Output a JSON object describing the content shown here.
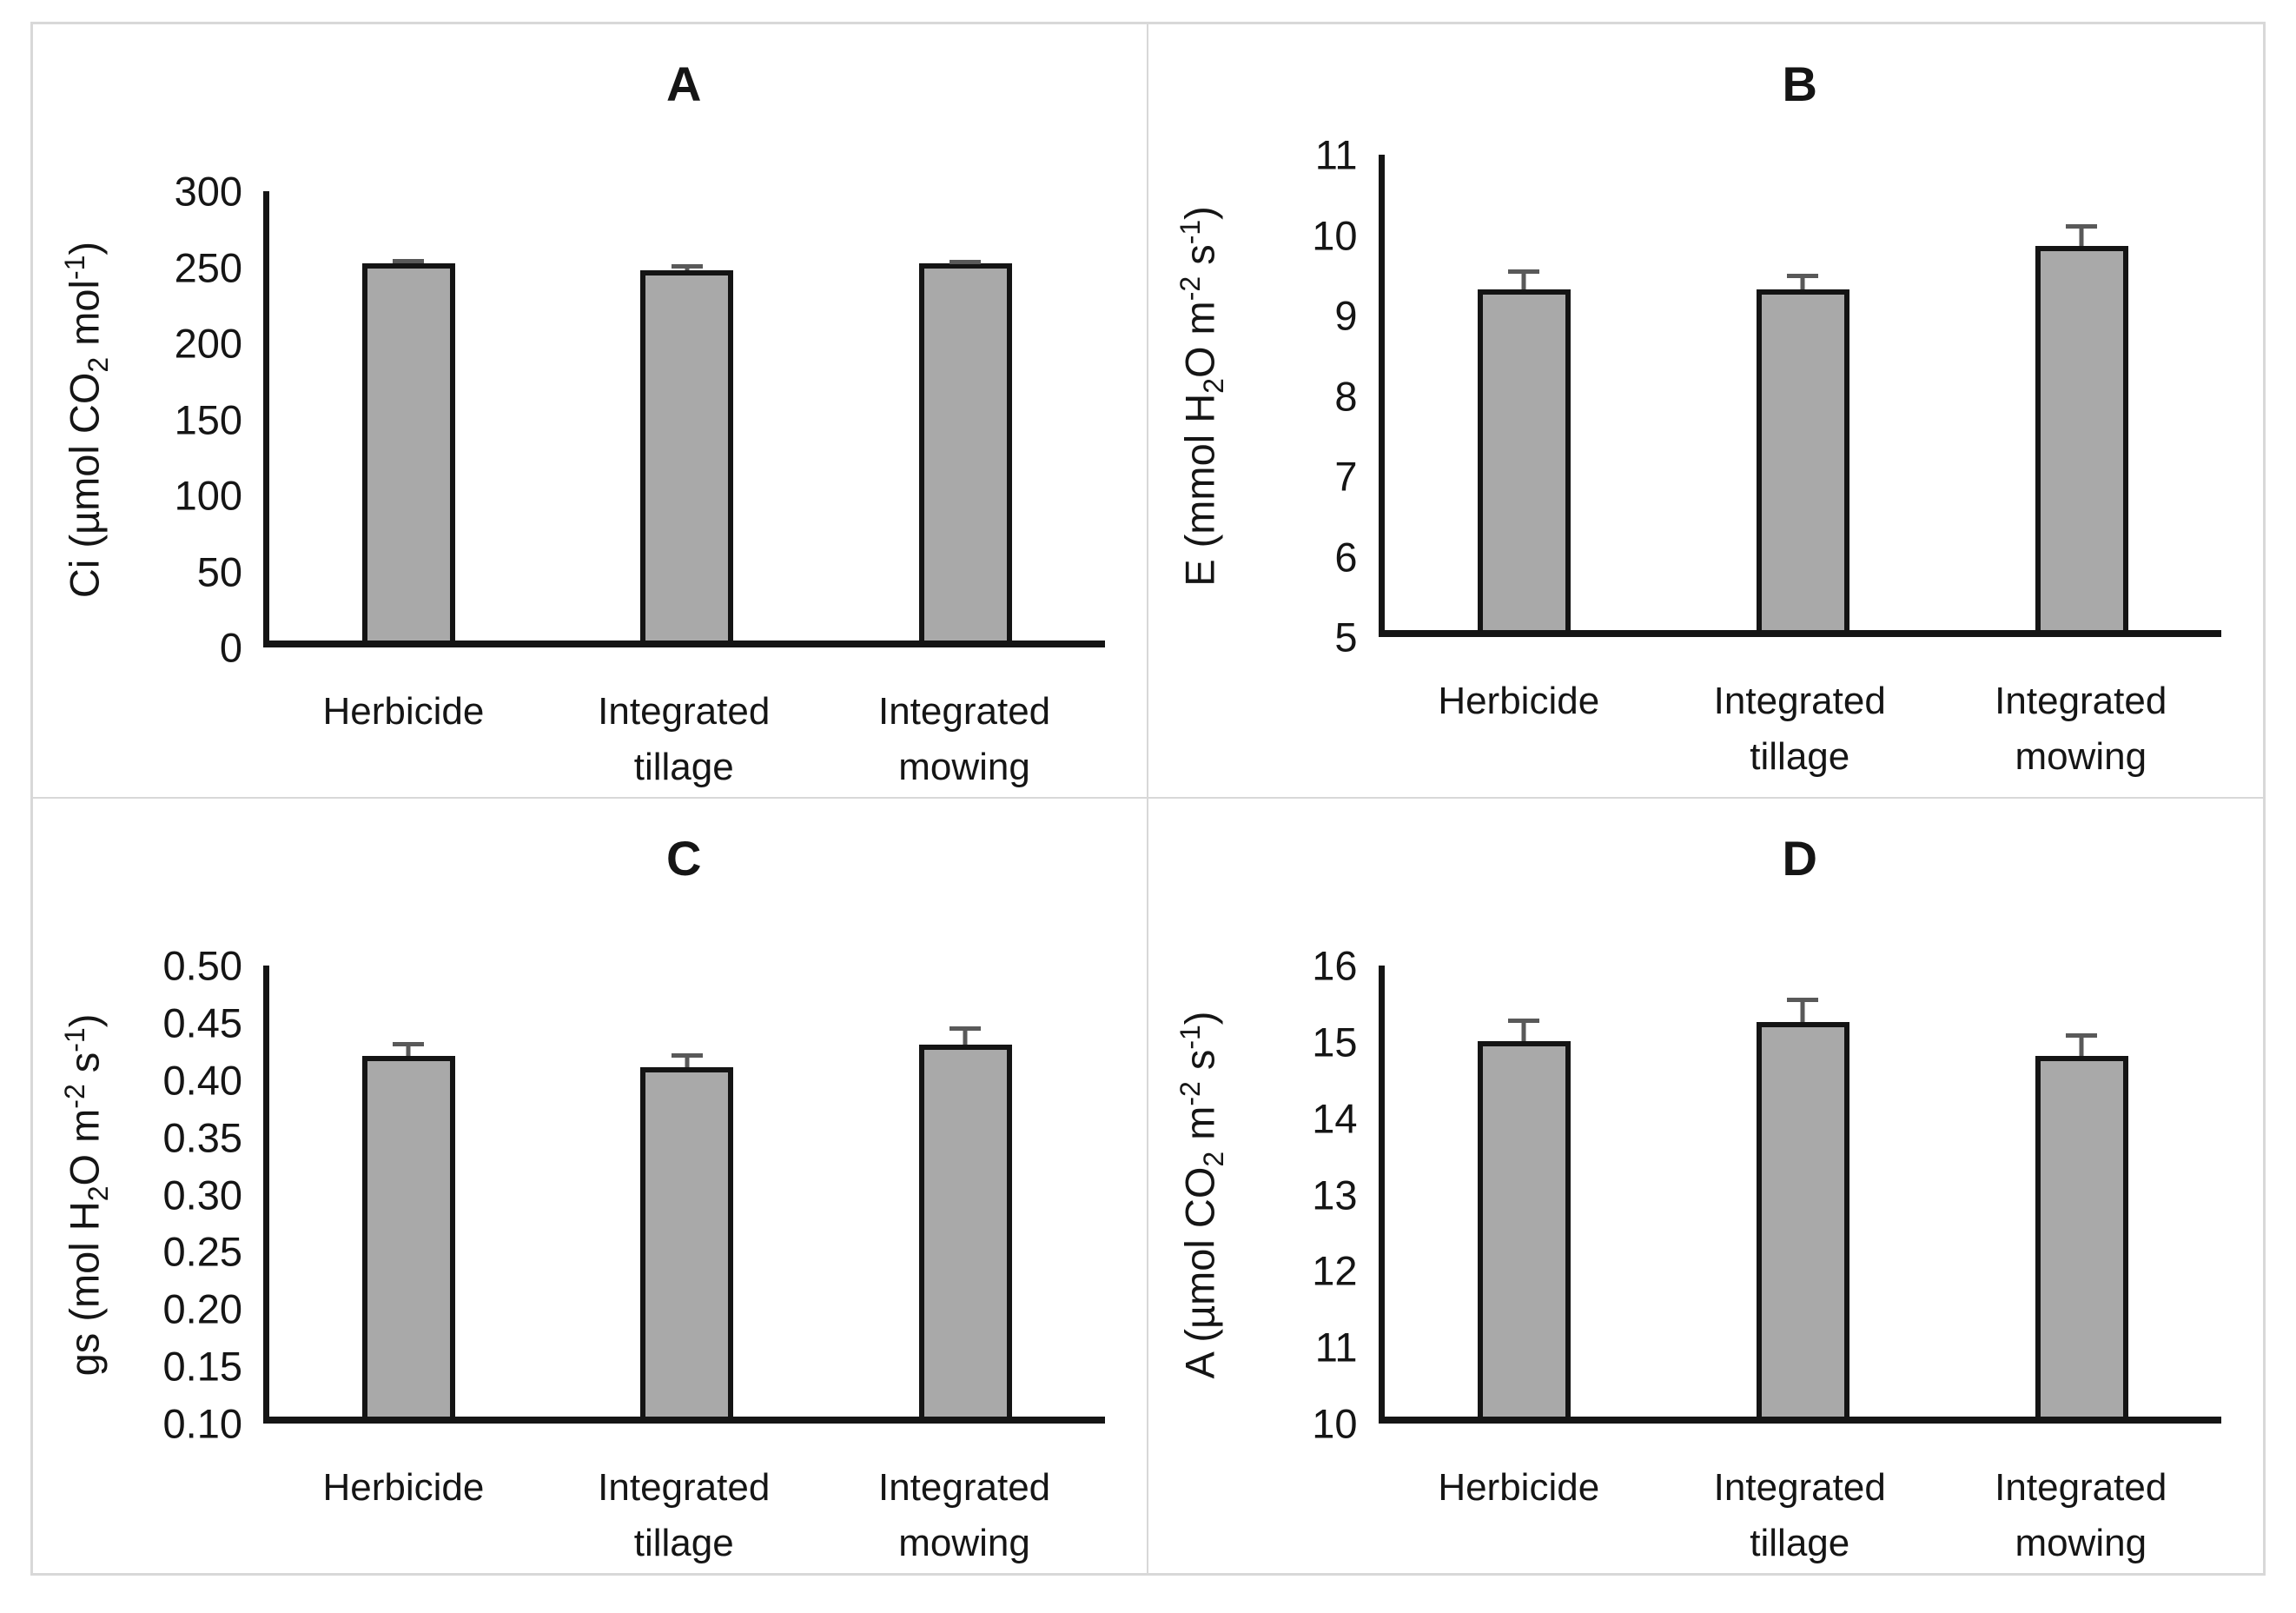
{
  "figure": {
    "background": "#ffffff",
    "frame_border_color": "#d8d8d8",
    "bar_fill_color": "#a9a9a9",
    "bar_border_color": "#141414",
    "error_bar_color": "#595959",
    "axis_color": "#151515",
    "layout": "2x2 grid of panels labeled A, B, C, D"
  },
  "chart_data": [
    {
      "panel": "A",
      "type": "bar",
      "title": "A",
      "ylabel": "Ci (µmol CO~2~ mol^-1^)",
      "xlabel": "",
      "categories": [
        "Herbicide",
        "Integrated tillage",
        "Integrated mowing"
      ],
      "values": [
        252,
        247,
        252
      ],
      "errors_plus": [
        3,
        4,
        2
      ],
      "ylim": [
        0,
        300
      ],
      "yticks": [
        "300",
        "250",
        "200",
        "150",
        "100",
        "50",
        "0"
      ],
      "grid": false,
      "legend": null
    },
    {
      "panel": "B",
      "type": "bar",
      "title": "B",
      "ylabel": "E (mmol H~2~O m^-2^ s^-1^)",
      "xlabel": "",
      "categories": [
        "Herbicide",
        "Integrated tillage",
        "Integrated mowing"
      ],
      "values": [
        9.3,
        9.3,
        9.85
      ],
      "errors_plus": [
        0.25,
        0.2,
        0.27
      ],
      "ylim": [
        5,
        11
      ],
      "yticks": [
        "11",
        "10",
        "9",
        "8",
        "7",
        "6",
        "5"
      ],
      "grid": false,
      "legend": null
    },
    {
      "panel": "C",
      "type": "bar",
      "title": "C",
      "ylabel": "gs (mol H~2~O m^-2^ s^-1^)",
      "xlabel": "",
      "categories": [
        "Herbicide",
        "Integrated tillage",
        "Integrated mowing"
      ],
      "values": [
        0.42,
        0.41,
        0.43
      ],
      "errors_plus": [
        0.012,
        0.012,
        0.016
      ],
      "ylim": [
        0.1,
        0.5
      ],
      "yticks": [
        "0.50",
        "0.45",
        "0.40",
        "0.35",
        "0.30",
        "0.25",
        "0.20",
        "0.15",
        "0.10"
      ],
      "grid": false,
      "legend": null
    },
    {
      "panel": "D",
      "type": "bar",
      "title": "D",
      "ylabel": "A (µmol CO~2~ m^-2^ s^-1^)",
      "xlabel": "",
      "categories": [
        "Herbicide",
        "Integrated tillage",
        "Integrated mowing"
      ],
      "values": [
        15.0,
        15.25,
        14.8
      ],
      "errors_plus": [
        0.3,
        0.32,
        0.3
      ],
      "ylim": [
        10,
        16
      ],
      "yticks": [
        "16",
        "15",
        "14",
        "13",
        "12",
        "11",
        "10"
      ],
      "grid": false,
      "legend": null
    }
  ]
}
